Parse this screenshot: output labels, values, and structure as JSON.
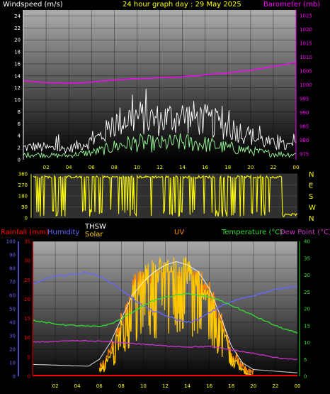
{
  "page": {
    "title": "24 hour graph day : 29 May 2025",
    "background": "#000000",
    "colors": {
      "wind": "#ffffff",
      "wind_avg": "#99ff99",
      "barometer": "#ff00ff",
      "direction": "#ffff00",
      "temperature": "#33dd33",
      "dewpoint": "#cc33cc",
      "humidity": "#6666ff",
      "thsw": "#ffffff",
      "solar": "#ffcc00",
      "uv": "#ff8800",
      "rain": "#ff0000",
      "axis_yellow": "#ffff00",
      "axis_red": "#ff0000",
      "axis_blue": "#6666ff",
      "axis_green": "#33dd33"
    }
  },
  "chart_data": [
    {
      "type": "line",
      "panel": "wind_barometer",
      "ylabel_left": "Windspeed (m/s)",
      "ylabel_right": "Barometer (mb)",
      "y_left_ticks": [
        "0",
        "2",
        "4",
        "6",
        "8",
        "10",
        "12",
        "14",
        "16",
        "18",
        "20",
        "22",
        "24"
      ],
      "y_right_ticks": [
        "975",
        "980",
        "985",
        "990",
        "995",
        "1000",
        "1005",
        "1010",
        "1015",
        "1020",
        "1025"
      ],
      "x_ticks": [
        "02",
        "04",
        "06",
        "08",
        "10",
        "12",
        "14",
        "16",
        "18",
        "20",
        "22",
        "00"
      ],
      "ylim_left": [
        0,
        25
      ],
      "ylim_right": [
        973,
        1027
      ],
      "xlim": [
        0,
        24
      ],
      "series": [
        {
          "key": "gust",
          "hours": [
            0,
            1,
            2,
            3,
            4,
            5,
            6,
            7,
            8,
            9,
            10,
            11,
            12,
            13,
            14,
            15,
            16,
            17,
            18,
            19,
            20,
            21,
            22,
            23,
            24
          ],
          "values": [
            2.0,
            2.2,
            2.0,
            1.8,
            1.8,
            2.5,
            3.0,
            4.2,
            6.0,
            6.8,
            7.2,
            6.8,
            6.6,
            7.0,
            7.2,
            7.0,
            6.6,
            6.0,
            5.4,
            4.8,
            4.0,
            3.2,
            2.6,
            2.3,
            2.2
          ]
        },
        {
          "key": "speed",
          "hours": [
            0,
            1,
            2,
            3,
            4,
            5,
            6,
            7,
            8,
            9,
            10,
            11,
            12,
            13,
            14,
            15,
            16,
            17,
            18,
            19,
            20,
            21,
            22,
            23,
            24
          ],
          "values": [
            0.8,
            0.9,
            0.8,
            0.7,
            0.7,
            1.0,
            1.2,
            1.6,
            2.2,
            2.6,
            2.8,
            2.7,
            2.6,
            2.8,
            2.9,
            2.8,
            2.6,
            2.3,
            2.0,
            1.8,
            1.5,
            1.2,
            1.0,
            0.9,
            0.9
          ]
        },
        {
          "key": "barometer",
          "hours": [
            0,
            2,
            4,
            6,
            8,
            10,
            12,
            14,
            16,
            18,
            20,
            22,
            24
          ],
          "values": [
            1001.5,
            1000.8,
            1000.6,
            1001.0,
            1001.8,
            1002.2,
            1002.5,
            1003.0,
            1003.6,
            1004.3,
            1005.3,
            1006.6,
            1008.2
          ]
        }
      ]
    },
    {
      "type": "scatter",
      "panel": "wind_direction",
      "y_ticks": [
        "0",
        "90",
        "180",
        "270",
        "360"
      ],
      "compass": [
        "N",
        "W",
        "S",
        "E",
        "N"
      ],
      "ylim": [
        0,
        360
      ],
      "xlim": [
        0,
        24
      ],
      "series": [
        {
          "key": "direction",
          "mostly": 335,
          "dips_to": 10,
          "late_tail_from_hour": 22.6,
          "late_tail_value": 25
        }
      ]
    },
    {
      "type": "line",
      "panel": "temperature_humidity_solar",
      "labels": {
        "rain": "Rainfall (mm)",
        "humidity": "Humidity",
        "thsw": "THSW",
        "solar": "Solar",
        "uv": "UV",
        "temperature": "Temperature (°C)",
        "dewpoint": "Dew Point (°C)"
      },
      "y_left_humidity_ticks": [
        "0",
        "10",
        "20",
        "30",
        "40",
        "50",
        "60",
        "70",
        "80",
        "90",
        "100"
      ],
      "y_left_rain_ticks": [
        "0",
        "5",
        "10",
        "15",
        "20",
        "25",
        "30",
        "35"
      ],
      "y_right_ticks": [
        "0",
        "5",
        "10",
        "15",
        "20",
        "25",
        "30",
        "35",
        "40"
      ],
      "x_ticks": [
        "02",
        "04",
        "06",
        "08",
        "10",
        "12",
        "14",
        "16",
        "18",
        "20",
        "22",
        "00"
      ],
      "ylim_humidity": [
        0,
        100
      ],
      "ylim_rain": [
        0,
        35
      ],
      "ylim_temp": [
        0,
        40
      ],
      "xlim": [
        0,
        24
      ],
      "series": [
        {
          "key": "humidity",
          "hours": [
            0,
            1,
            2,
            3,
            4,
            5,
            6,
            7,
            8,
            9,
            10,
            11,
            12,
            13,
            14,
            15,
            16,
            17,
            18,
            19,
            20,
            21,
            22,
            23,
            24
          ],
          "values": [
            68,
            72,
            74,
            75,
            76,
            77,
            74,
            70,
            64,
            58,
            52,
            48,
            45,
            42,
            40,
            42,
            47,
            52,
            55,
            58,
            60,
            62,
            64,
            66,
            67
          ]
        },
        {
          "key": "temperature",
          "hours": [
            0,
            1,
            2,
            3,
            4,
            5,
            6,
            7,
            8,
            9,
            10,
            11,
            12,
            13,
            14,
            15,
            16,
            17,
            18,
            19,
            20,
            21,
            22,
            23,
            24
          ],
          "values": [
            16.5,
            16.0,
            15.5,
            15.2,
            15.0,
            14.8,
            14.8,
            15.5,
            17.0,
            19.0,
            21.0,
            22.5,
            23.5,
            24.0,
            24.5,
            24.0,
            23.5,
            22.5,
            21.0,
            19.5,
            18.0,
            16.5,
            15.0,
            13.8,
            12.8
          ]
        },
        {
          "key": "dewpoint",
          "hours": [
            0,
            2,
            4,
            6,
            8,
            10,
            12,
            14,
            16,
            18,
            20,
            22,
            24
          ],
          "values": [
            10.2,
            10.3,
            10.5,
            10.4,
            10.0,
            9.5,
            9.0,
            8.7,
            8.8,
            7.8,
            6.8,
            5.5,
            5.0
          ]
        },
        {
          "key": "thsw",
          "hours": [
            0,
            5,
            6,
            7,
            8,
            9,
            10,
            11,
            12,
            13,
            14,
            15,
            16,
            17,
            18,
            19,
            20,
            24
          ],
          "values": [
            3.5,
            3.0,
            5,
            10,
            17,
            24,
            28,
            31,
            33,
            34,
            33,
            31,
            26,
            18,
            9,
            4,
            2,
            1
          ]
        },
        {
          "key": "solar_envelope",
          "hours": [
            6,
            7,
            8,
            9,
            10,
            11,
            12,
            13,
            14,
            15,
            16,
            17,
            18,
            19,
            20
          ],
          "values": [
            2,
            6,
            16,
            25,
            30,
            32,
            33,
            33,
            32,
            29,
            24,
            16,
            7,
            2,
            0
          ]
        },
        {
          "key": "uv_peak",
          "hours": [
            12.5
          ],
          "values": [
            31
          ]
        },
        {
          "key": "rain",
          "total": 0
        }
      ]
    }
  ]
}
